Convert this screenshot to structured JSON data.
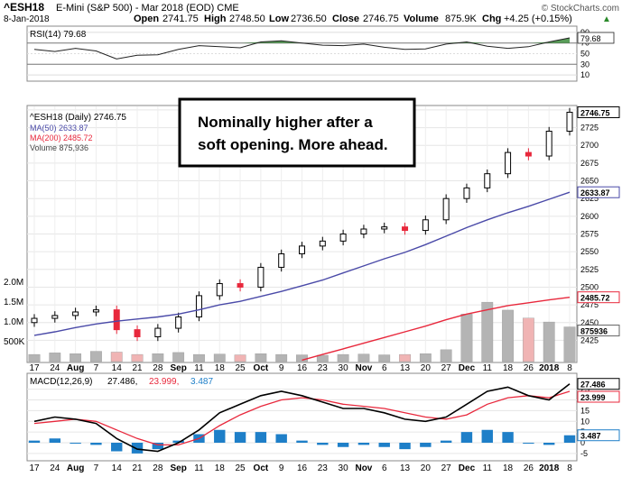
{
  "header": {
    "symbol": "^ESH18",
    "name": "E-Mini (S&P 500) - Mar 2018 (EOD) CME",
    "credit": "© StockCharts.com",
    "date": "8-Jan-2018",
    "open_label": "Open",
    "open": "2741.75",
    "high_label": "High",
    "high": "2748.50",
    "low_label": "Low",
    "low": "2736.50",
    "close_label": "Close",
    "close": "2746.75",
    "volume_label": "Volume",
    "volume": "875.9K",
    "chg_label": "Chg",
    "chg": "+4.25 (+0.15%)"
  },
  "annotation": {
    "line1": "Nominally higher after a",
    "line2": "soft opening. More ahead."
  },
  "rsi_panel": {
    "legend": "RSI(14) 79.68",
    "current_value": "79.68"
  },
  "price_panel": {
    "legend_symbol": "^ESH18 (Daily) 2746.75",
    "legend_ma50": "MA(50) 2633.87",
    "legend_ma200": "MA(200) 2485.72",
    "legend_volume": "Volume 875,936",
    "last_price_tag": "2746.75",
    "ma50_tag": "2633.87",
    "ma200_tag": "2485.72",
    "volume_tag": "875936"
  },
  "macd_panel": {
    "legend_name": "MACD(12,26,9)",
    "legend_macd": "27.486,",
    "legend_signal": "23.999,",
    "legend_hist": "3.487",
    "macd_tag": "27.486",
    "signal_tag": "23.999",
    "hist_tag": "3.487"
  },
  "x_axis_labels": [
    "17",
    "24",
    "Aug",
    "7",
    "14",
    "21",
    "28",
    "Sep",
    "11",
    "18",
    "25",
    "Oct",
    "9",
    "16",
    "23",
    "30",
    "Nov",
    "6",
    "13",
    "20",
    "27",
    "Dec",
    "11",
    "18",
    "26",
    "2018",
    "8"
  ],
  "x_axis_bold": [
    "Aug",
    "Sep",
    "Oct",
    "Nov",
    "Dec",
    "2018"
  ],
  "colors": {
    "up_candle": "#000000",
    "down_candle": "#e8283c",
    "ma50": "#4a4aa8",
    "ma200": "#e8283c",
    "rsi_fill": "#3c8c3c",
    "macd_line": "#000000",
    "signal_line": "#e8283c",
    "histogram": "#1e7fc8",
    "volume_up": "#b4b4b4",
    "volume_down": "#f0b4b4"
  },
  "chart_data": [
    {
      "type": "line",
      "title": "RSI(14)",
      "ylim": [
        0,
        100
      ],
      "yticks": [
        10,
        30,
        50,
        70,
        90
      ],
      "overbought": 70,
      "oversold": 30,
      "x": [
        "17",
        "24",
        "Aug",
        "7",
        "14",
        "21",
        "28",
        "Sep",
        "11",
        "18",
        "25",
        "Oct",
        "9",
        "16",
        "23",
        "30",
        "Nov",
        "6",
        "13",
        "20",
        "27",
        "Dec",
        "11",
        "18",
        "26",
        "2018",
        "8"
      ],
      "series": [
        {
          "name": "RSI(14)",
          "values": [
            58,
            54,
            60,
            55,
            40,
            47,
            48,
            58,
            65,
            63,
            61,
            72,
            74,
            70,
            66,
            65,
            68,
            62,
            58,
            59,
            68,
            72,
            64,
            60,
            63,
            72,
            79.68
          ]
        }
      ]
    },
    {
      "type": "line",
      "title": "^ESH18 (Daily) 2746.75",
      "ylim": [
        2395,
        2755
      ],
      "yticks": [
        2425,
        2450,
        2475,
        2500,
        2525,
        2550,
        2575,
        2600,
        2625,
        2650,
        2675,
        2700,
        2725,
        2750
      ],
      "x": [
        "17",
        "24",
        "Aug",
        "7",
        "14",
        "21",
        "28",
        "Sep",
        "11",
        "18",
        "25",
        "Oct",
        "9",
        "16",
        "23",
        "30",
        "Nov",
        "6",
        "13",
        "20",
        "27",
        "Dec",
        "11",
        "18",
        "26",
        "2018",
        "8"
      ],
      "series": [
        {
          "name": "^ESH18",
          "values": [
            2456,
            2460,
            2465,
            2468,
            2440,
            2430,
            2442,
            2458,
            2488,
            2505,
            2500,
            2528,
            2547,
            2558,
            2565,
            2575,
            2582,
            2585,
            2580,
            2595,
            2625,
            2640,
            2660,
            2690,
            2685,
            2720,
            2746.75
          ]
        },
        {
          "name": "MA(50)",
          "values": [
            2432,
            2437,
            2443,
            2448,
            2452,
            2455,
            2458,
            2462,
            2468,
            2475,
            2480,
            2487,
            2494,
            2502,
            2510,
            2520,
            2530,
            2540,
            2549,
            2560,
            2572,
            2584,
            2595,
            2605,
            2614,
            2624,
            2633.87
          ]
        },
        {
          "name": "MA(200)",
          "values": [
            null,
            null,
            null,
            null,
            null,
            null,
            null,
            null,
            null,
            null,
            null,
            null,
            null,
            2397,
            2405,
            2413,
            2421,
            2429,
            2437,
            2445,
            2454,
            2462,
            2468,
            2474,
            2478,
            2482,
            2485.72
          ]
        }
      ],
      "volume_axis": {
        "ticks": [
          "2.0M",
          "1.5M",
          "1.0M",
          "500K"
        ]
      },
      "volume": [
        180000,
        220000,
        200000,
        260000,
        240000,
        180000,
        200000,
        230000,
        180000,
        190000,
        170000,
        200000,
        180000,
        170000,
        160000,
        180000,
        190000,
        170000,
        180000,
        200000,
        300000,
        1200000,
        1500000,
        1300000,
        1100000,
        1000000,
        875936
      ]
    },
    {
      "type": "line",
      "title": "MACD(12,26,9)",
      "ylim": [
        -8,
        32
      ],
      "yticks": [
        -5,
        0,
        5,
        10,
        15,
        20,
        25
      ],
      "x": [
        "17",
        "24",
        "Aug",
        "7",
        "14",
        "21",
        "28",
        "Sep",
        "11",
        "18",
        "25",
        "Oct",
        "9",
        "16",
        "23",
        "30",
        "Nov",
        "6",
        "13",
        "20",
        "27",
        "Dec",
        "11",
        "18",
        "26",
        "2018",
        "8"
      ],
      "series": [
        {
          "name": "MACD",
          "values": [
            10,
            12,
            11,
            9,
            2,
            -3,
            -4,
            0,
            6,
            14,
            18,
            22,
            24,
            22,
            19,
            16,
            16,
            14,
            11,
            10,
            12,
            18,
            24,
            26,
            22,
            20,
            27.486
          ]
        },
        {
          "name": "Signal",
          "values": [
            9,
            10,
            11,
            10,
            6,
            2,
            -1,
            -1,
            2,
            8,
            13,
            17,
            20,
            21,
            20,
            18,
            17,
            16,
            14,
            12,
            11,
            13,
            18,
            21,
            22,
            21,
            23.999
          ]
        },
        {
          "name": "Histogram",
          "values": [
            1,
            2,
            0,
            -1,
            -4,
            -5,
            -3,
            1,
            4,
            6,
            5,
            5,
            4,
            1,
            -1,
            -2,
            -1,
            -2,
            -3,
            -2,
            1,
            5,
            6,
            5,
            0,
            -1,
            3.487
          ]
        }
      ]
    }
  ]
}
